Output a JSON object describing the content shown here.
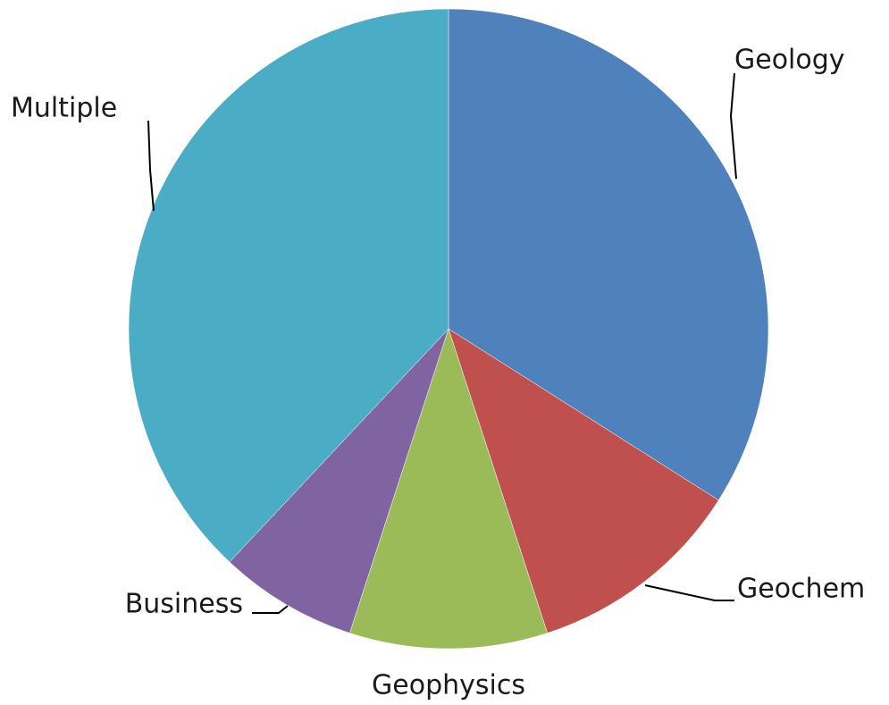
{
  "chart_data": {
    "type": "pie",
    "categories": [
      "Geology",
      "Geochem",
      "Geophysics",
      "Business",
      "Multiple"
    ],
    "values": [
      34,
      11,
      10,
      7,
      38
    ],
    "colors": [
      "#4f81bd",
      "#c0504d",
      "#9bbb59",
      "#8064a2",
      "#4bacc6"
    ]
  }
}
